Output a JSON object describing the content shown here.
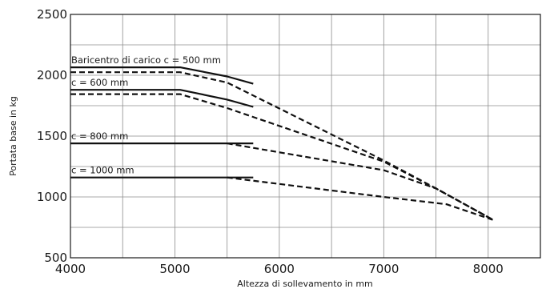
{
  "chart_data": {
    "type": "line",
    "xlabel": "Altezza di sollevamento in mm",
    "ylabel": "Portata base in kg",
    "xlim": [
      4000,
      8500
    ],
    "ylim": [
      500,
      2500
    ],
    "x_ticks": [
      "4000",
      "5000",
      "6000",
      "7000",
      "8000"
    ],
    "y_ticks": [
      "500",
      "1000",
      "1500",
      "2000",
      "2500"
    ],
    "x_grid_step": 500,
    "y_grid_step": 250,
    "grid": true,
    "series": [
      {
        "name": "Baricentro di carico c = 500 mm",
        "style": "solid",
        "x": [
          4000,
          5050,
          5500,
          5750
        ],
        "y": [
          2065,
          2065,
          1990,
          1930
        ]
      },
      {
        "name": "",
        "style": "dashed",
        "x": [
          4000,
          5050,
          5500,
          7000,
          7500,
          8050
        ],
        "y": [
          2025,
          2025,
          1940,
          1300,
          1070,
          810
        ]
      },
      {
        "name": "c = 600 mm",
        "style": "solid",
        "x": [
          4000,
          5050,
          5500,
          5750
        ],
        "y": [
          1880,
          1880,
          1800,
          1740
        ]
      },
      {
        "name": "",
        "style": "dashed",
        "x": [
          4000,
          5050,
          5500,
          7000,
          7500,
          8050
        ],
        "y": [
          1845,
          1845,
          1730,
          1290,
          1070,
          810
        ]
      },
      {
        "name": "c = 800 mm",
        "style": "solid",
        "x": [
          4000,
          5750
        ],
        "y": [
          1440,
          1440
        ]
      },
      {
        "name": "",
        "style": "dashed",
        "x": [
          5500,
          7000,
          7500,
          8050
        ],
        "y": [
          1440,
          1220,
          1070,
          810
        ]
      },
      {
        "name": "c = 1000 mm",
        "style": "solid",
        "x": [
          4000,
          5750
        ],
        "y": [
          1160,
          1160
        ]
      },
      {
        "name": "",
        "style": "dashed",
        "x": [
          5500,
          7000,
          7600,
          8050
        ],
        "y": [
          1160,
          1000,
          940,
          810
        ]
      }
    ]
  }
}
